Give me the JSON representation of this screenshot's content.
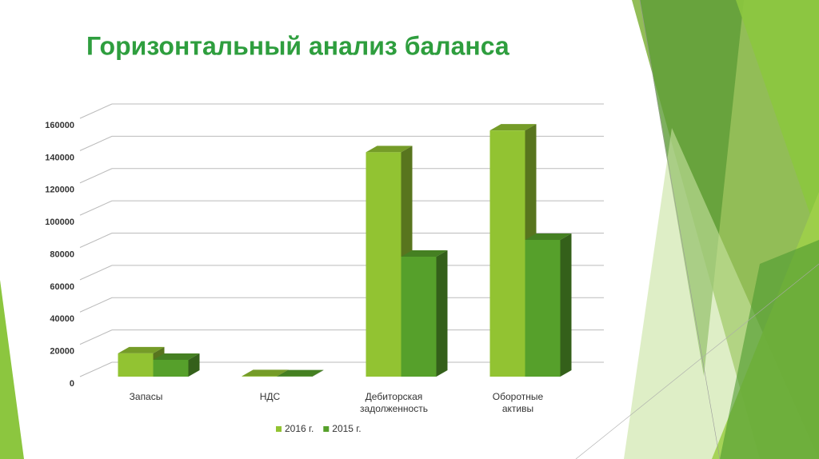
{
  "chart_data": {
    "type": "bar3d",
    "title": "Горизонтальный анализ баланса",
    "categories": [
      "Запасы",
      "НДС",
      "Дебиторская задолженность",
      "Оборотные активы"
    ],
    "series": [
      {
        "name": "2016 г.",
        "color": "#92c332",
        "values": [
          14400,
          300,
          139000,
          152500
        ]
      },
      {
        "name": "2015 г.",
        "color": "#56a02b",
        "values": [
          10400,
          200,
          74300,
          84700
        ]
      }
    ],
    "ylim": [
      0,
      160000
    ],
    "yticks": [
      0,
      20000,
      40000,
      60000,
      80000,
      100000,
      120000,
      140000,
      160000
    ],
    "grid": true,
    "legend": "bottom"
  }
}
